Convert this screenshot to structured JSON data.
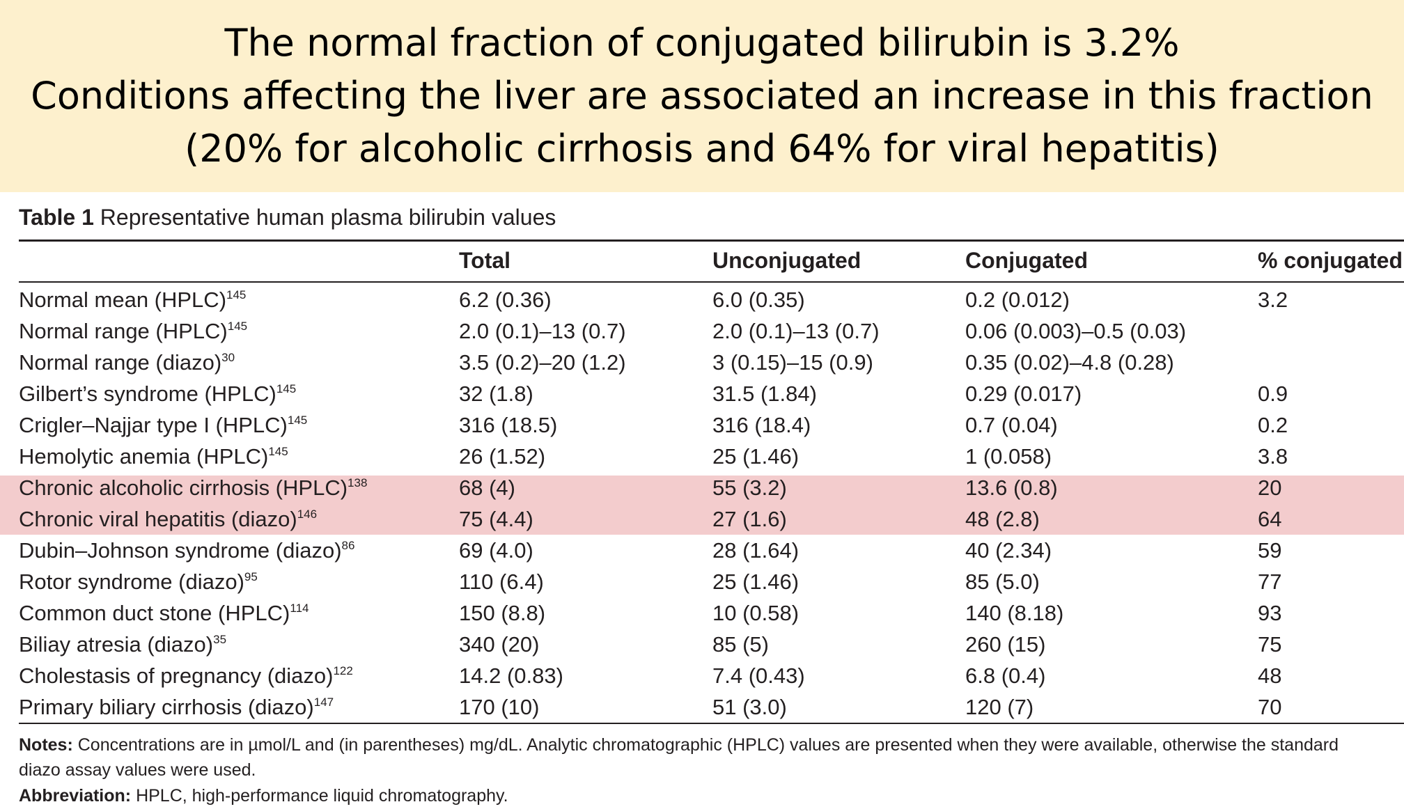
{
  "banner": {
    "lines": [
      "The normal fraction of conjugated bilirubin is 3.2%",
      "Conditions affecting the liver are associated an increase in this fraction",
      "(20% for alcoholic cirrhosis and 64% for viral hepatitis)"
    ],
    "background_color": "#fdf0cd"
  },
  "table": {
    "caption_label": "Table 1",
    "caption_text": "Representative human plasma bilirubin values",
    "columns": [
      "Total",
      "Unconjugated",
      "Conjugated",
      "% conjugated"
    ],
    "highlight_color": "#f3cccd",
    "rows": [
      {
        "label": "Normal mean (HPLC)",
        "ref": "145",
        "total": "6.2 (0.36)",
        "unconjugated": "6.0 (0.35)",
        "conjugated": "0.2 (0.012)",
        "percent": "3.2",
        "highlighted": false
      },
      {
        "label": "Normal range (HPLC)",
        "ref": "145",
        "total": "2.0 (0.1)–13 (0.7)",
        "unconjugated": "2.0 (0.1)–13 (0.7)",
        "conjugated": "0.06 (0.003)–0.5 (0.03)",
        "percent": "",
        "highlighted": false
      },
      {
        "label": "Normal range (diazo)",
        "ref": "30",
        "total": "3.5 (0.2)–20 (1.2)",
        "unconjugated": "3 (0.15)–15 (0.9)",
        "conjugated": "0.35 (0.02)–4.8 (0.28)",
        "percent": "",
        "highlighted": false
      },
      {
        "label": "Gilbert’s syndrome (HPLC)",
        "ref": "145",
        "total": "32 (1.8)",
        "unconjugated": "31.5 (1.84)",
        "conjugated": "0.29 (0.017)",
        "percent": "0.9",
        "highlighted": false
      },
      {
        "label": "Crigler–Najjar type I (HPLC)",
        "ref": "145",
        "total": "316 (18.5)",
        "unconjugated": "316 (18.4)",
        "conjugated": "0.7 (0.04)",
        "percent": "0.2",
        "highlighted": false
      },
      {
        "label": "Hemolytic anemia (HPLC)",
        "ref": "145",
        "total": "26 (1.52)",
        "unconjugated": "25 (1.46)",
        "conjugated": "1 (0.058)",
        "percent": "3.8",
        "highlighted": false
      },
      {
        "label": "Chronic alcoholic cirrhosis (HPLC)",
        "ref": "138",
        "total": "68 (4)",
        "unconjugated": "55 (3.2)",
        "conjugated": "13.6 (0.8)",
        "percent": "20",
        "highlighted": true
      },
      {
        "label": "Chronic viral hepatitis (diazo)",
        "ref": "146",
        "total": "75 (4.4)",
        "unconjugated": "27 (1.6)",
        "conjugated": "48 (2.8)",
        "percent": "64",
        "highlighted": true
      },
      {
        "label": "Dubin–Johnson syndrome (diazo)",
        "ref": "86",
        "total": "69 (4.0)",
        "unconjugated": "28 (1.64)",
        "conjugated": "40 (2.34)",
        "percent": "59",
        "highlighted": false
      },
      {
        "label": "Rotor syndrome (diazo)",
        "ref": "95",
        "total": "110 (6.4)",
        "unconjugated": "25 (1.46)",
        "conjugated": "85 (5.0)",
        "percent": "77",
        "highlighted": false
      },
      {
        "label": "Common duct stone (HPLC)",
        "ref": "114",
        "total": "150 (8.8)",
        "unconjugated": "10 (0.58)",
        "conjugated": "140 (8.18)",
        "percent": "93",
        "highlighted": false
      },
      {
        "label": "Biliay atresia (diazo)",
        "ref": "35",
        "total": "340 (20)",
        "unconjugated": "85 (5)",
        "conjugated": "260 (15)",
        "percent": "75",
        "highlighted": false
      },
      {
        "label": "Cholestasis of pregnancy (diazo)",
        "ref": "122",
        "total": "14.2 (0.83)",
        "unconjugated": "7.4 (0.43)",
        "conjugated": "6.8 (0.4)",
        "percent": "48",
        "highlighted": false
      },
      {
        "label": "Primary biliary cirrhosis (diazo)",
        "ref": "147",
        "total": "170 (10)",
        "unconjugated": "51 (3.0)",
        "conjugated": "120 (7)",
        "percent": "70",
        "highlighted": false
      }
    ]
  },
  "notes": {
    "notes_label": "Notes:",
    "notes_line1": "Concentrations are in µmol/L and (in parentheses) mg/dL. Analytic chromatographic (HPLC) values are presented when they were available, otherwise the standard",
    "notes_line2": "diazo assay values were used.",
    "abbrev_label": "Abbreviation:",
    "abbrev_text": "HPLC, high-performance liquid chromatography."
  }
}
